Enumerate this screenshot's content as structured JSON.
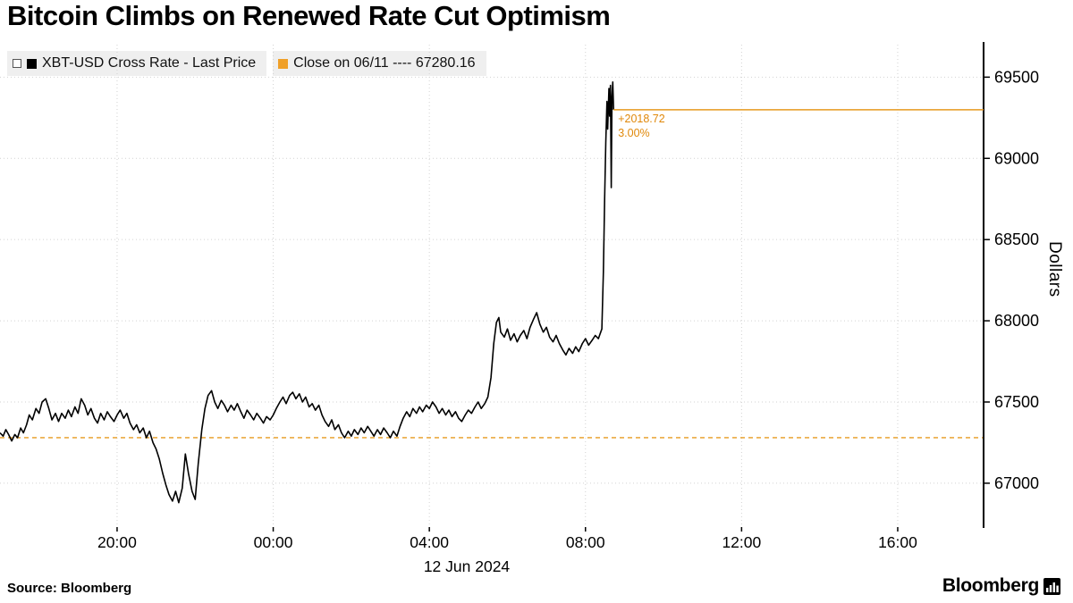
{
  "title": "Bitcoin Climbs on Renewed Rate Cut Optimism",
  "legend": {
    "series_label": "XBT-USD Cross Rate - Last Price",
    "close_label": "Close on 06/11 ---- 67280.16",
    "series_color": "#000000",
    "close_color": "#F0A028"
  },
  "annotation": {
    "change": "+2018.72",
    "pct": "3.00%",
    "color": "#E0880A"
  },
  "footer": {
    "source": "Source: Bloomberg",
    "logo": "Bloomberg"
  },
  "colors": {
    "accent_orange": "#E69A1F",
    "grid_gray": "#d2d2d2",
    "series_black": "#000000"
  },
  "chart_data": {
    "type": "line",
    "title": "Bitcoin Climbs on Renewed Rate Cut Optimism",
    "xlabel": "12 Jun 2024",
    "ylabel": "Dollars",
    "x_axis_label": "12 Jun 2024",
    "grid": true,
    "legend_position": "top-left",
    "xlim": [
      -7,
      18.2
    ],
    "ylim": [
      66730,
      69700
    ],
    "x_ticks": [
      {
        "t": -4,
        "label": "20:00"
      },
      {
        "t": 0,
        "label": "00:00"
      },
      {
        "t": 4,
        "label": "04:00"
      },
      {
        "t": 8,
        "label": "08:00"
      },
      {
        "t": 12,
        "label": "12:00"
      },
      {
        "t": 16,
        "label": "16:00"
      }
    ],
    "y_ticks": [
      67000,
      67500,
      68000,
      68500,
      69000,
      69500
    ],
    "close_line": 67280.16,
    "last_price": 69298.88,
    "series": [
      {
        "name": "XBT-USD Cross Rate - Last Price",
        "points": [
          [
            -7.0,
            67310
          ],
          [
            -6.92,
            67290
          ],
          [
            -6.85,
            67330
          ],
          [
            -6.78,
            67300
          ],
          [
            -6.7,
            67260
          ],
          [
            -6.62,
            67300
          ],
          [
            -6.55,
            67280
          ],
          [
            -6.47,
            67340
          ],
          [
            -6.4,
            67310
          ],
          [
            -6.32,
            67360
          ],
          [
            -6.25,
            67420
          ],
          [
            -6.17,
            67390
          ],
          [
            -6.08,
            67460
          ],
          [
            -6.0,
            67430
          ],
          [
            -5.92,
            67500
          ],
          [
            -5.83,
            67520
          ],
          [
            -5.75,
            67460
          ],
          [
            -5.67,
            67390
          ],
          [
            -5.58,
            67430
          ],
          [
            -5.5,
            67380
          ],
          [
            -5.42,
            67430
          ],
          [
            -5.33,
            67400
          ],
          [
            -5.25,
            67450
          ],
          [
            -5.17,
            67410
          ],
          [
            -5.08,
            67470
          ],
          [
            -5.0,
            67430
          ],
          [
            -4.92,
            67520
          ],
          [
            -4.83,
            67480
          ],
          [
            -4.75,
            67420
          ],
          [
            -4.67,
            67460
          ],
          [
            -4.58,
            67400
          ],
          [
            -4.5,
            67370
          ],
          [
            -4.42,
            67430
          ],
          [
            -4.33,
            67390
          ],
          [
            -4.25,
            67440
          ],
          [
            -4.17,
            67410
          ],
          [
            -4.08,
            67380
          ],
          [
            -4.0,
            67420
          ],
          [
            -3.92,
            67450
          ],
          [
            -3.83,
            67400
          ],
          [
            -3.75,
            67430
          ],
          [
            -3.67,
            67370
          ],
          [
            -3.58,
            67330
          ],
          [
            -3.5,
            67360
          ],
          [
            -3.42,
            67310
          ],
          [
            -3.33,
            67340
          ],
          [
            -3.25,
            67280
          ],
          [
            -3.17,
            67320
          ],
          [
            -3.08,
            67250
          ],
          [
            -3.0,
            67210
          ],
          [
            -2.92,
            67150
          ],
          [
            -2.83,
            67060
          ],
          [
            -2.75,
            66990
          ],
          [
            -2.67,
            66930
          ],
          [
            -2.58,
            66890
          ],
          [
            -2.5,
            66950
          ],
          [
            -2.42,
            66880
          ],
          [
            -2.33,
            66970
          ],
          [
            -2.25,
            67180
          ],
          [
            -2.17,
            67060
          ],
          [
            -2.08,
            66950
          ],
          [
            -2.0,
            66900
          ],
          [
            -1.92,
            67120
          ],
          [
            -1.83,
            67330
          ],
          [
            -1.75,
            67460
          ],
          [
            -1.67,
            67540
          ],
          [
            -1.58,
            67570
          ],
          [
            -1.5,
            67500
          ],
          [
            -1.42,
            67460
          ],
          [
            -1.33,
            67510
          ],
          [
            -1.25,
            67480
          ],
          [
            -1.17,
            67440
          ],
          [
            -1.08,
            67480
          ],
          [
            -1.0,
            67450
          ],
          [
            -0.92,
            67490
          ],
          [
            -0.83,
            67440
          ],
          [
            -0.75,
            67400
          ],
          [
            -0.67,
            67450
          ],
          [
            -0.58,
            67420
          ],
          [
            -0.5,
            67390
          ],
          [
            -0.42,
            67430
          ],
          [
            -0.33,
            67400
          ],
          [
            -0.25,
            67370
          ],
          [
            -0.17,
            67410
          ],
          [
            -0.08,
            67390
          ],
          [
            0.0,
            67420
          ],
          [
            0.08,
            67460
          ],
          [
            0.17,
            67500
          ],
          [
            0.25,
            67530
          ],
          [
            0.33,
            67490
          ],
          [
            0.42,
            67540
          ],
          [
            0.5,
            67560
          ],
          [
            0.58,
            67520
          ],
          [
            0.67,
            67550
          ],
          [
            0.75,
            67500
          ],
          [
            0.83,
            67530
          ],
          [
            0.92,
            67470
          ],
          [
            1.0,
            67490
          ],
          [
            1.08,
            67450
          ],
          [
            1.17,
            67480
          ],
          [
            1.25,
            67420
          ],
          [
            1.33,
            67380
          ],
          [
            1.42,
            67350
          ],
          [
            1.5,
            67390
          ],
          [
            1.58,
            67330
          ],
          [
            1.67,
            67360
          ],
          [
            1.75,
            67310
          ],
          [
            1.83,
            67280
          ],
          [
            1.92,
            67320
          ],
          [
            2.0,
            67290
          ],
          [
            2.08,
            67330
          ],
          [
            2.17,
            67300
          ],
          [
            2.25,
            67340
          ],
          [
            2.33,
            67310
          ],
          [
            2.42,
            67350
          ],
          [
            2.5,
            67320
          ],
          [
            2.58,
            67290
          ],
          [
            2.67,
            67330
          ],
          [
            2.75,
            67300
          ],
          [
            2.83,
            67340
          ],
          [
            2.92,
            67310
          ],
          [
            3.0,
            67280
          ],
          [
            3.08,
            67320
          ],
          [
            3.17,
            67290
          ],
          [
            3.25,
            67350
          ],
          [
            3.33,
            67400
          ],
          [
            3.42,
            67440
          ],
          [
            3.5,
            67410
          ],
          [
            3.58,
            67460
          ],
          [
            3.67,
            67430
          ],
          [
            3.75,
            67470
          ],
          [
            3.83,
            67440
          ],
          [
            3.92,
            67480
          ],
          [
            4.0,
            67460
          ],
          [
            4.08,
            67500
          ],
          [
            4.17,
            67470
          ],
          [
            4.25,
            67430
          ],
          [
            4.33,
            67460
          ],
          [
            4.42,
            67420
          ],
          [
            4.5,
            67450
          ],
          [
            4.58,
            67410
          ],
          [
            4.67,
            67440
          ],
          [
            4.75,
            67400
          ],
          [
            4.83,
            67380
          ],
          [
            4.92,
            67420
          ],
          [
            5.0,
            67450
          ],
          [
            5.08,
            67430
          ],
          [
            5.17,
            67470
          ],
          [
            5.25,
            67500
          ],
          [
            5.33,
            67460
          ],
          [
            5.42,
            67490
          ],
          [
            5.5,
            67530
          ],
          [
            5.58,
            67650
          ],
          [
            5.65,
            67860
          ],
          [
            5.72,
            67990
          ],
          [
            5.78,
            68020
          ],
          [
            5.83,
            67930
          ],
          [
            5.92,
            67900
          ],
          [
            6.0,
            67950
          ],
          [
            6.08,
            67880
          ],
          [
            6.17,
            67920
          ],
          [
            6.25,
            67870
          ],
          [
            6.33,
            67910
          ],
          [
            6.42,
            67940
          ],
          [
            6.5,
            67890
          ],
          [
            6.58,
            67960
          ],
          [
            6.67,
            68010
          ],
          [
            6.75,
            68050
          ],
          [
            6.83,
            67980
          ],
          [
            6.92,
            67930
          ],
          [
            7.0,
            67960
          ],
          [
            7.08,
            67900
          ],
          [
            7.17,
            67870
          ],
          [
            7.25,
            67910
          ],
          [
            7.33,
            67860
          ],
          [
            7.42,
            67820
          ],
          [
            7.5,
            67790
          ],
          [
            7.58,
            67830
          ],
          [
            7.67,
            67800
          ],
          [
            7.75,
            67840
          ],
          [
            7.83,
            67810
          ],
          [
            7.92,
            67860
          ],
          [
            8.0,
            67890
          ],
          [
            8.08,
            67850
          ],
          [
            8.17,
            67880
          ],
          [
            8.25,
            67910
          ],
          [
            8.33,
            67890
          ],
          [
            8.42,
            67950
          ],
          [
            8.46,
            68300
          ],
          [
            8.49,
            68750
          ],
          [
            8.52,
            69100
          ],
          [
            8.55,
            69350
          ],
          [
            8.57,
            69180
          ],
          [
            8.6,
            69430
          ],
          [
            8.62,
            69260
          ],
          [
            8.64,
            69450
          ],
          [
            8.66,
            68820
          ],
          [
            8.68,
            69380
          ],
          [
            8.7,
            69470
          ],
          [
            8.72,
            69298.88
          ]
        ]
      }
    ]
  }
}
